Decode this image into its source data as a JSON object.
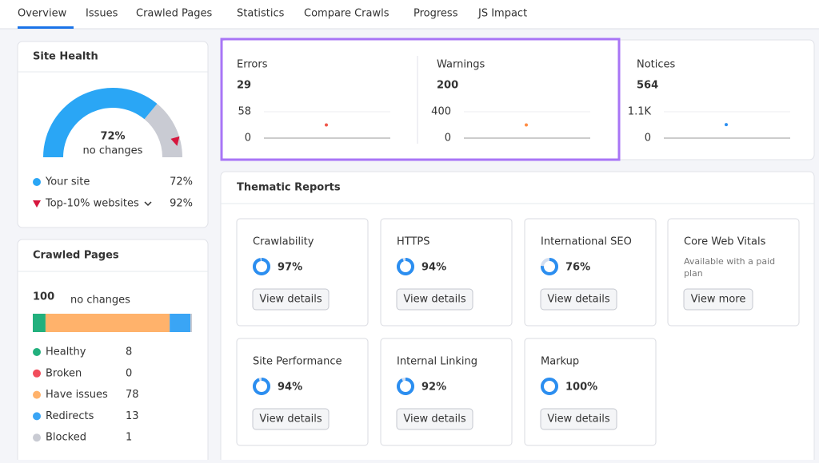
{
  "tabs": [
    "Overview",
    "Issues",
    "Crawled Pages",
    "Statistics",
    "Compare Crawls",
    "Progress",
    "JS Impact"
  ],
  "site_health": {
    "title": "Site Health",
    "note": "no changes",
    "legend": [
      {
        "label": "Your site",
        "value": 72,
        "value_label": "72%"
      },
      {
        "label": "Top-10% websites",
        "value": 92,
        "value_label": "92%"
      }
    ]
  },
  "crawled_pages": {
    "title": "Crawled Pages",
    "total": 100,
    "note": "no changes",
    "segments": [
      {
        "label": "Healthy",
        "count": 8,
        "color": "#22b07d"
      },
      {
        "label": "Broken",
        "count": 0,
        "color": "#f14d5c"
      },
      {
        "label": "Have issues",
        "count": 78,
        "color": "#ffb26b"
      },
      {
        "label": "Redirects",
        "count": 13,
        "color": "#3aa5f5"
      },
      {
        "label": "Blocked",
        "count": 1,
        "color": "#c9cbd3"
      }
    ]
  },
  "issues": [
    {
      "label": "Errors",
      "value": 29,
      "color": "#f0564a",
      "yticks": [
        0,
        58
      ]
    },
    {
      "label": "Warnings",
      "value": 200,
      "color": "#ff8c43",
      "yticks": [
        0,
        400
      ]
    },
    {
      "label": "Notices",
      "value": 564,
      "color": "#2b8ef0",
      "yticks": [
        0,
        {
          "value": 1100,
          "label": "1.1K"
        }
      ]
    }
  ],
  "thematic": {
    "title": "Thematic Reports",
    "reports": [
      {
        "title": "Crawlability",
        "value": 97,
        "value_label": "97%",
        "button": "View details"
      },
      {
        "title": "HTTPS",
        "value": 94,
        "value_label": "94%",
        "button": "View details"
      },
      {
        "title": "International SEO",
        "value": 76,
        "value_label": "76%",
        "button": "View details"
      },
      {
        "title": "Core Web Vitals",
        "description": "Available with a paid plan",
        "button": "View more"
      },
      {
        "title": "Site Performance",
        "value": 94,
        "value_label": "94%",
        "button": "View details"
      },
      {
        "title": "Internal Linking",
        "value": 92,
        "value_label": "92%",
        "button": "View details"
      },
      {
        "title": "Markup",
        "value": 100,
        "value_label": "100%",
        "button": "View details"
      }
    ]
  }
}
